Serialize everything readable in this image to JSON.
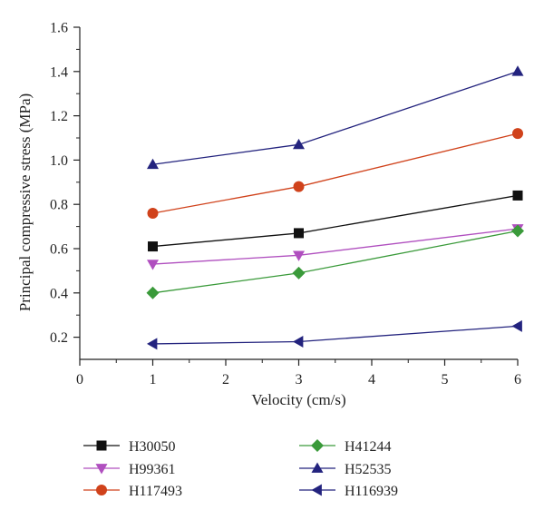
{
  "chart_data": {
    "type": "line",
    "title": "",
    "xlabel": "Velocity (cm/s)",
    "ylabel": "Principal compressive stress (MPa)",
    "xlim": [
      0,
      6
    ],
    "ylim": [
      0.1,
      1.6
    ],
    "x_ticks": [
      "0",
      "1",
      "2",
      "3",
      "4",
      "5",
      "6"
    ],
    "y_ticks": [
      "0.2",
      "0.4",
      "0.6",
      "0.8",
      "1.0",
      "1.2",
      "1.4",
      "1.6"
    ],
    "grid": false,
    "legend_position": "bottom",
    "x": [
      1,
      3,
      6
    ],
    "series": [
      {
        "name": "H30050",
        "values": [
          0.61,
          0.67,
          0.84
        ],
        "color": "#111111",
        "marker": "square"
      },
      {
        "name": "H99361",
        "values": [
          0.53,
          0.57,
          0.69
        ],
        "color": "#b04fbf",
        "marker": "triangle-down"
      },
      {
        "name": "H117493",
        "values": [
          0.76,
          0.88,
          1.12
        ],
        "color": "#d0421b",
        "marker": "circle"
      },
      {
        "name": "H41244",
        "values": [
          0.4,
          0.49,
          0.68
        ],
        "color": "#3a9a3a",
        "marker": "diamond"
      },
      {
        "name": "H52535",
        "values": [
          0.98,
          1.07,
          1.4
        ],
        "color": "#23237e",
        "marker": "triangle-up"
      },
      {
        "name": "H116939",
        "values": [
          0.17,
          0.18,
          0.25
        ],
        "color": "#23237e",
        "marker": "triangle-left"
      }
    ]
  }
}
